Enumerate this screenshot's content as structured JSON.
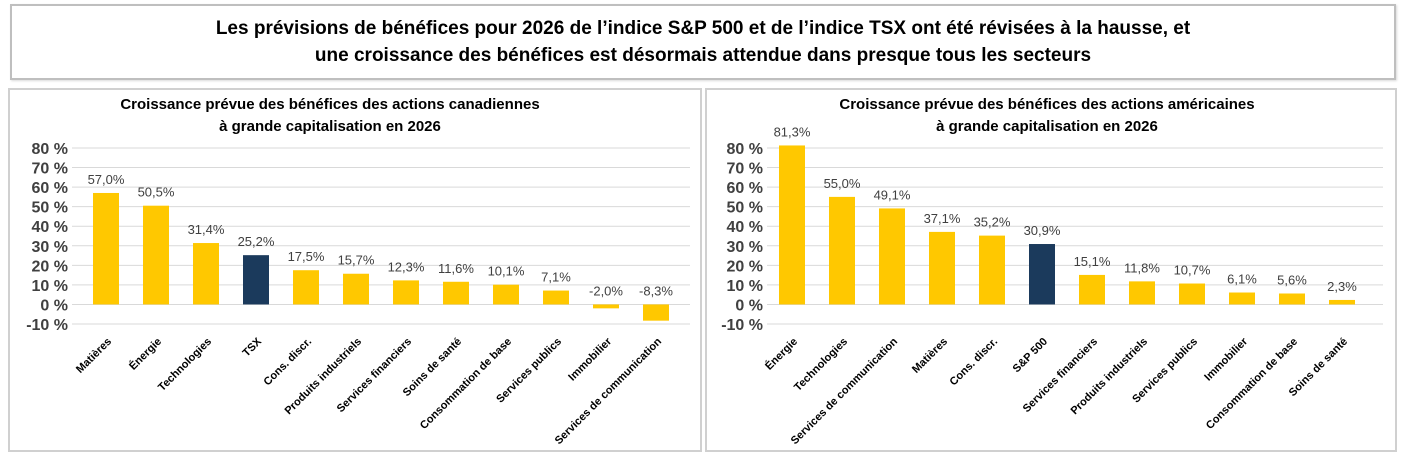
{
  "headline": {
    "line1": "Les prévisions de bénéfices pour 2026 de l’indice S&P 500 et de l’indice TSX ont été révisées à la hausse, et",
    "line2": "une croissance des bénéfices est désormais attendue dans presque tous les secteurs"
  },
  "colors": {
    "sector": "#FFC800",
    "index": "#1B3A5C",
    "grid": "#d9d9d9"
  },
  "chart_data": [
    {
      "type": "bar",
      "title_line1": "Croissance prévue des bénéfices des actions canadiennes",
      "title_line2": "à grande capitalisation en 2026",
      "ylim": [
        -10,
        80
      ],
      "ytick_values": [
        -10,
        0,
        10,
        20,
        30,
        40,
        50,
        60,
        70,
        80
      ],
      "ytick_labels": [
        "-10 %",
        "0 %",
        "10 %",
        "20 %",
        "30 %",
        "40 %",
        "50 %",
        "60 %",
        "70 %",
        "80 %"
      ],
      "grid": true,
      "categories": [
        "Matières",
        "Énergie",
        "Technologies",
        "TSX",
        "Cons. discr.",
        "Produits industriels",
        "Services financiers",
        "Soins de santé",
        "Consommation de base",
        "Services publics",
        "Immobilier",
        "Services de communication"
      ],
      "values": [
        57.0,
        50.5,
        31.4,
        25.2,
        17.5,
        15.7,
        12.3,
        11.6,
        10.1,
        7.1,
        -2.0,
        -8.3
      ],
      "value_labels": [
        "57,0%",
        "50,5%",
        "31,4%",
        "25,2%",
        "17,5%",
        "15,7%",
        "12,3%",
        "11,6%",
        "10,1%",
        "7,1%",
        "-2,0%",
        "-8,3%"
      ],
      "highlight": "TSX"
    },
    {
      "type": "bar",
      "title_line1": "Croissance prévue des bénéfices des actions américaines",
      "title_line2": "à grande capitalisation en 2026",
      "ylim": [
        -10,
        80
      ],
      "ytick_values": [
        -10,
        0,
        10,
        20,
        30,
        40,
        50,
        60,
        70,
        80
      ],
      "ytick_labels": [
        "-10 %",
        "0 %",
        "10 %",
        "20 %",
        "30 %",
        "40 %",
        "50 %",
        "60 %",
        "70 %",
        "80 %"
      ],
      "grid": true,
      "categories": [
        "Énergie",
        "Technologies",
        "Services de communication",
        "Matières",
        "Cons. discr.",
        "S&P 500",
        "Services financiers",
        "Produits industriels",
        "Services publics",
        "Immobilier",
        "Consommation de base",
        "Soins de santé"
      ],
      "values": [
        81.3,
        55.0,
        49.1,
        37.1,
        35.2,
        30.9,
        15.1,
        11.8,
        10.7,
        6.1,
        5.6,
        2.3
      ],
      "value_labels": [
        "81,3%",
        "55,0%",
        "49,1%",
        "37,1%",
        "35,2%",
        "30,9%",
        "15,1%",
        "11,8%",
        "10,7%",
        "6,1%",
        "5,6%",
        "2,3%"
      ],
      "highlight": "S&P 500"
    }
  ]
}
